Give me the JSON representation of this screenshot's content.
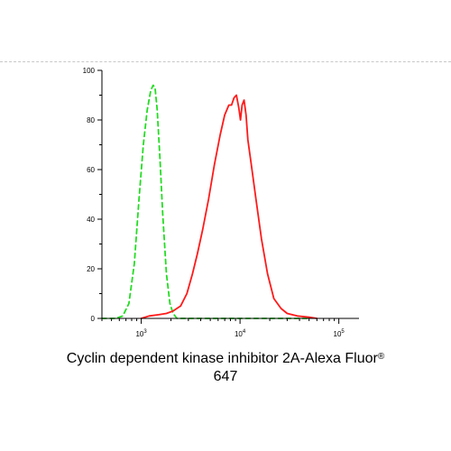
{
  "chart_data": {
    "type": "line",
    "title": "",
    "xlabel": "Cyclin dependent kinase inhibitor 2A-Alexa Fluor",
    "xlabel_sup": "®",
    "xlabel_line2": "647",
    "ylabel": "",
    "x_scale": "log",
    "xlim": [
      400,
      160000
    ],
    "ylim": [
      0,
      100
    ],
    "x_ticks": [
      {
        "value": 1000,
        "base": "10",
        "exp": "3"
      },
      {
        "value": 10000,
        "base": "10",
        "exp": "4"
      },
      {
        "value": 100000,
        "base": "10",
        "exp": "5"
      }
    ],
    "y_ticks": [
      0,
      20,
      40,
      60,
      80,
      100
    ],
    "grid": false,
    "legend": "none",
    "series": [
      {
        "color": "#22dd22",
        "style": "dashed",
        "points": [
          [
            400,
            0
          ],
          [
            550,
            0
          ],
          [
            650,
            1
          ],
          [
            750,
            6
          ],
          [
            850,
            22
          ],
          [
            950,
            48
          ],
          [
            1050,
            70
          ],
          [
            1150,
            84
          ],
          [
            1250,
            92
          ],
          [
            1320,
            94
          ],
          [
            1380,
            93
          ],
          [
            1450,
            84
          ],
          [
            1550,
            64
          ],
          [
            1650,
            42
          ],
          [
            1800,
            18
          ],
          [
            1950,
            6
          ],
          [
            2100,
            2
          ],
          [
            2300,
            0
          ],
          [
            3000,
            0
          ],
          [
            50000,
            0
          ]
        ]
      },
      {
        "color": "#ff1a1a",
        "style": "solid",
        "points": [
          [
            1000,
            0
          ],
          [
            1200,
            1
          ],
          [
            1500,
            1.5
          ],
          [
            1800,
            2
          ],
          [
            2100,
            3
          ],
          [
            2500,
            5
          ],
          [
            2900,
            10
          ],
          [
            3300,
            18
          ],
          [
            3700,
            26
          ],
          [
            4200,
            36
          ],
          [
            4800,
            48
          ],
          [
            5500,
            62
          ],
          [
            6300,
            74
          ],
          [
            7000,
            82
          ],
          [
            7700,
            86
          ],
          [
            8200,
            86
          ],
          [
            8700,
            89
          ],
          [
            9200,
            90
          ],
          [
            9700,
            85
          ],
          [
            10100,
            80
          ],
          [
            10500,
            86
          ],
          [
            11000,
            88
          ],
          [
            11500,
            82
          ],
          [
            12000,
            72
          ],
          [
            13000,
            62
          ],
          [
            14500,
            48
          ],
          [
            16500,
            32
          ],
          [
            19000,
            18
          ],
          [
            22000,
            8
          ],
          [
            26000,
            4
          ],
          [
            30000,
            2
          ],
          [
            38000,
            1
          ],
          [
            50000,
            0.5
          ],
          [
            60000,
            0
          ]
        ]
      }
    ]
  }
}
